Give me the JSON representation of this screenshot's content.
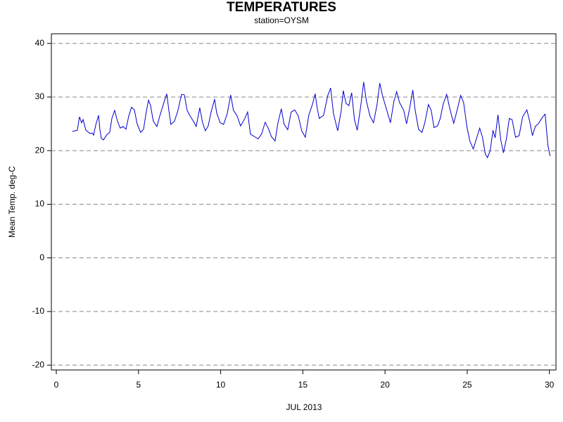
{
  "chart_data": {
    "type": "line",
    "title": "TEMPERATURES",
    "subtitle": "station=OYSM",
    "x_label": "JUL 2013",
    "y_label": "Mean Temp. deg-C",
    "color": "#0000cc",
    "grid": true,
    "xlim": [
      -0.3,
      30.4
    ],
    "ylim": [
      -20.9,
      41.8
    ],
    "xticks": [
      0,
      5,
      10,
      15,
      20,
      25,
      30
    ],
    "yticks": [
      -20,
      -10,
      0,
      10,
      20,
      30,
      40
    ],
    "x": [
      0.98,
      1.28,
      1.41,
      1.54,
      1.63,
      1.8,
      2.05,
      2.18,
      2.27,
      2.4,
      2.57,
      2.65,
      2.74,
      2.87,
      3.08,
      3.25,
      3.38,
      3.55,
      3.72,
      3.89,
      4.06,
      4.24,
      4.41,
      4.58,
      4.75,
      4.92,
      5.13,
      5.31,
      5.48,
      5.61,
      5.73,
      5.9,
      6.12,
      6.29,
      6.55,
      6.72,
      6.85,
      6.97,
      7.19,
      7.4,
      7.62,
      7.79,
      7.96,
      8.17,
      8.34,
      8.51,
      8.73,
      8.9,
      9.07,
      9.24,
      9.41,
      9.63,
      9.76,
      9.97,
      10.18,
      10.4,
      10.61,
      10.78,
      11.0,
      11.21,
      11.47,
      11.64,
      11.81,
      12.07,
      12.28,
      12.49,
      12.71,
      12.92,
      13.09,
      13.31,
      13.48,
      13.69,
      13.86,
      14.08,
      14.29,
      14.51,
      14.72,
      14.93,
      15.15,
      15.36,
      15.58,
      15.75,
      15.87,
      16.0,
      16.26,
      16.52,
      16.69,
      16.86,
      17.12,
      17.33,
      17.46,
      17.63,
      17.8,
      17.97,
      18.14,
      18.31,
      18.53,
      18.7,
      18.87,
      19.08,
      19.3,
      19.51,
      19.68,
      19.85,
      20.11,
      20.33,
      20.54,
      20.71,
      20.88,
      21.14,
      21.31,
      21.48,
      21.69,
      21.82,
      22.04,
      22.25,
      22.42,
      22.64,
      22.81,
      22.98,
      23.19,
      23.36,
      23.54,
      23.75,
      23.96,
      24.18,
      24.39,
      24.6,
      24.78,
      24.99,
      25.16,
      25.37,
      25.59,
      25.76,
      25.93,
      26.1,
      26.23,
      26.4,
      26.57,
      26.7,
      26.87,
      27.04,
      27.21,
      27.39,
      27.56,
      27.73,
      27.94,
      28.16,
      28.37,
      28.63,
      28.8,
      28.97,
      29.14,
      29.35,
      29.57,
      29.74,
      29.91,
      30.04
    ],
    "values": [
      23.6,
      23.8,
      26.3,
      25.2,
      25.8,
      23.8,
      23.2,
      23.3,
      22.9,
      24.8,
      26.6,
      24.0,
      22.3,
      22.0,
      23.0,
      23.4,
      26.0,
      27.5,
      25.5,
      24.2,
      24.5,
      24.0,
      26.5,
      28.1,
      27.6,
      25.0,
      23.4,
      24.0,
      27.4,
      29.4,
      28.5,
      25.5,
      24.5,
      26.4,
      29.0,
      30.6,
      27.5,
      24.9,
      25.5,
      27.5,
      30.5,
      30.4,
      27.5,
      26.3,
      25.5,
      24.5,
      28.0,
      25.2,
      23.7,
      24.6,
      27.1,
      29.6,
      27.0,
      25.2,
      24.9,
      26.9,
      30.4,
      27.5,
      26.5,
      24.6,
      26.0,
      27.2,
      23.1,
      22.6,
      22.2,
      23.1,
      25.3,
      24.0,
      22.6,
      21.8,
      25.1,
      27.8,
      24.9,
      23.9,
      27.2,
      27.6,
      26.5,
      23.7,
      22.5,
      26.6,
      28.6,
      30.6,
      28.0,
      26.0,
      26.6,
      30.3,
      31.7,
      27.0,
      23.7,
      27.4,
      31.2,
      28.8,
      28.4,
      30.8,
      25.8,
      23.8,
      28.5,
      32.8,
      29.2,
      26.5,
      25.2,
      28.5,
      32.6,
      30.2,
      27.5,
      25.2,
      29.2,
      31.0,
      29.0,
      27.5,
      25.0,
      27.6,
      31.3,
      27.8,
      24.0,
      23.4,
      25.2,
      28.6,
      27.5,
      24.3,
      24.6,
      26.0,
      28.7,
      30.5,
      27.6,
      25.1,
      27.6,
      30.3,
      29.0,
      24.3,
      21.8,
      20.3,
      22.5,
      24.2,
      22.5,
      19.4,
      18.7,
      20.0,
      23.8,
      22.4,
      26.7,
      22.0,
      19.6,
      22.3,
      26.0,
      25.8,
      22.5,
      22.8,
      26.3,
      27.6,
      25.5,
      22.8,
      24.5,
      25.1,
      26.2,
      26.8,
      21.0,
      19.0
    ]
  }
}
